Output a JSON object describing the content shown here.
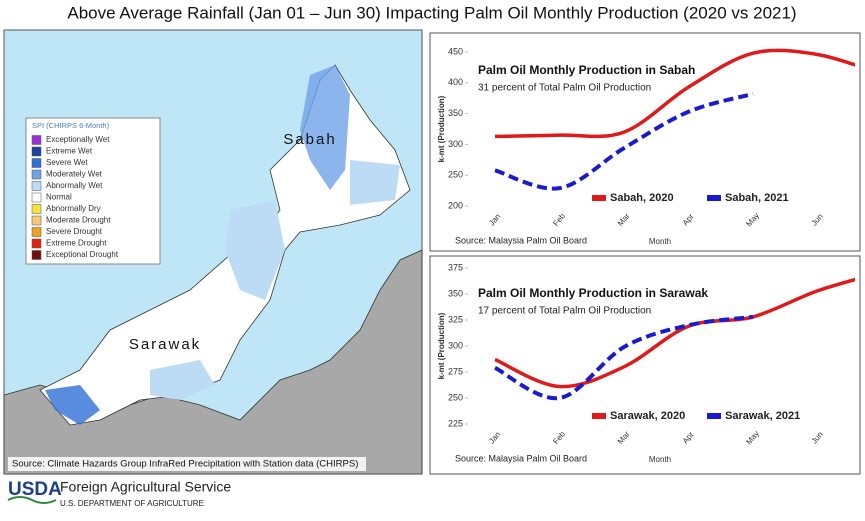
{
  "header": {
    "title": "Above Average Rainfall (Jan 01 – Jun 30) Impacting Palm Oil Monthly Production (2020 vs 2021)"
  },
  "map": {
    "legend_title": "SPI (CHIRPS 6-Month)",
    "legend": [
      {
        "label": "Exceptionally Wet",
        "color": "#9b30d9"
      },
      {
        "label": "Extreme Wet",
        "color": "#1f3f9e"
      },
      {
        "label": "Severe Wet",
        "color": "#2f6fd6"
      },
      {
        "label": "Moderately Wet",
        "color": "#6fa2e8"
      },
      {
        "label": "Abnormally Wet",
        "color": "#bcdcf5"
      },
      {
        "label": "Normal",
        "color": "#ffffff"
      },
      {
        "label": "Abnormally Dry",
        "color": "#f5e33a"
      },
      {
        "label": "Moderate Drought",
        "color": "#f5c97a"
      },
      {
        "label": "Severe Drought",
        "color": "#f0a020"
      },
      {
        "label": "Extreme Drought",
        "color": "#e02010"
      },
      {
        "label": "Exceptional Drought",
        "color": "#6e1010"
      }
    ],
    "labels": [
      "Sabah",
      "Sarawak"
    ],
    "source": "Source: Climate Hazards Group InfraRed Precipitation with Station data (CHIRPS)"
  },
  "chart_data": [
    {
      "type": "line",
      "title": "Palm Oil Monthly Production in Sabah",
      "subtitle": "31 percent of Total Palm Oil Production",
      "y_label": "k-mt (Production)",
      "x_label": "Month",
      "source": "Source: Malaysia Palm Oil Board",
      "categories": [
        "Jan",
        "Feb",
        "Mar",
        "Apr",
        "May",
        "Jun",
        null
      ],
      "ylim": [
        200,
        450
      ],
      "yticks": [
        200,
        250,
        300,
        350,
        400,
        450
      ],
      "series": [
        {
          "name": "Sabah, 2020",
          "color": "#e01a1a",
          "dash": false,
          "values": [
            313,
            315,
            320,
            393,
            448,
            446,
            414
          ]
        },
        {
          "name": "Sabah, 2021",
          "color": "#1a1ad0",
          "dash": true,
          "values": [
            258,
            229,
            294,
            353,
            382,
            null,
            null
          ]
        }
      ]
    },
    {
      "type": "line",
      "title": "Palm Oil Monthly Production in Sarawak",
      "subtitle": "17 percent of Total Palm Oil Production",
      "y_label": "k-mt (Production)",
      "x_label": "Month",
      "source": "Source: Malaysia Palm Oil Board",
      "categories": [
        "Jan",
        "Feb",
        "Mar",
        "Apr",
        "May",
        "Jun",
        null
      ],
      "ylim": [
        225,
        375
      ],
      "yticks": [
        225,
        250,
        275,
        300,
        325,
        350,
        375
      ],
      "series": [
        {
          "name": "Sarawak, 2020",
          "color": "#e01a1a",
          "dash": false,
          "values": [
            287,
            261,
            280,
            319,
            328,
            353,
            371
          ]
        },
        {
          "name": "Sarawak, 2021",
          "color": "#1a1ad0",
          "dash": true,
          "values": [
            279,
            250,
            299,
            320,
            328,
            null,
            null
          ]
        }
      ]
    }
  ],
  "footer": {
    "agency": "USDA",
    "name": "Foreign Agricultural Service",
    "department": "U.S. DEPARTMENT OF AGRICULTURE"
  }
}
